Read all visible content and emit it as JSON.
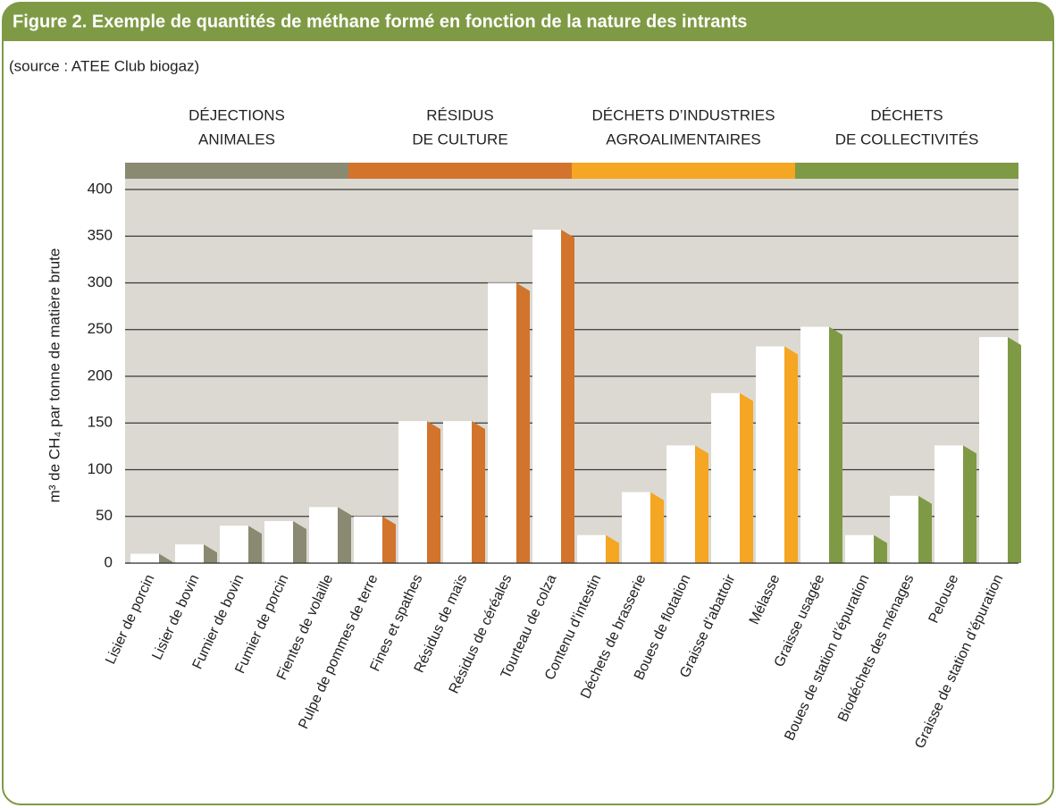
{
  "chart_data": {
    "type": "bar",
    "title": "Figure 2. Exemple de quantités de méthane formé en fonction de la nature des intrants",
    "subtitle": "(source : ATEE Club biogaz)",
    "y_label": "m³ de CH₄ par tonne de matière brute",
    "ylim": [
      0,
      400
    ],
    "yticks": [
      0,
      50,
      100,
      150,
      200,
      250,
      300,
      350,
      400
    ],
    "grid": true,
    "groups": [
      {
        "lines": [
          "DÉJECTIONS",
          "ANIMALES"
        ],
        "color": "#8a8a72",
        "categories": [
          "Lisier de porcin",
          "Lisier de bovin",
          "Fumier de bovin",
          "Fumier de porcin",
          "Fientes de volaille"
        ],
        "values": [
          10,
          20,
          40,
          45,
          60
        ]
      },
      {
        "lines": [
          "RÉSIDUS",
          "DE CULTURE"
        ],
        "color": "#d2742c",
        "categories": [
          "Pulpe de pommes de terre",
          "Fines et spathes",
          "Résidus de maïs",
          "Résidus de céréales",
          "Tourteau de colza"
        ],
        "values": [
          50,
          152,
          152,
          300,
          357
        ]
      },
      {
        "lines": [
          "DÉCHETS D’INDUSTRIES",
          "AGROALIMENTAIRES"
        ],
        "color": "#f5a623",
        "categories": [
          "Contenu d’intestin",
          "Déchets de brasserie",
          "Boues de flotation",
          "Graisse d’abattoir",
          "Mélasse"
        ],
        "values": [
          30,
          76,
          126,
          182,
          232
        ]
      },
      {
        "lines": [
          "DÉCHETS",
          "DE COLLECTIVITÉS"
        ],
        "color": "#7f9a45",
        "categories": [
          "Graisse usagée",
          "Boues de station d’épuration",
          "Biodéchets des ménages",
          "Pelouse",
          "Graisse de station d’épuration"
        ],
        "values": [
          253,
          30,
          72,
          126,
          242
        ]
      }
    ]
  }
}
